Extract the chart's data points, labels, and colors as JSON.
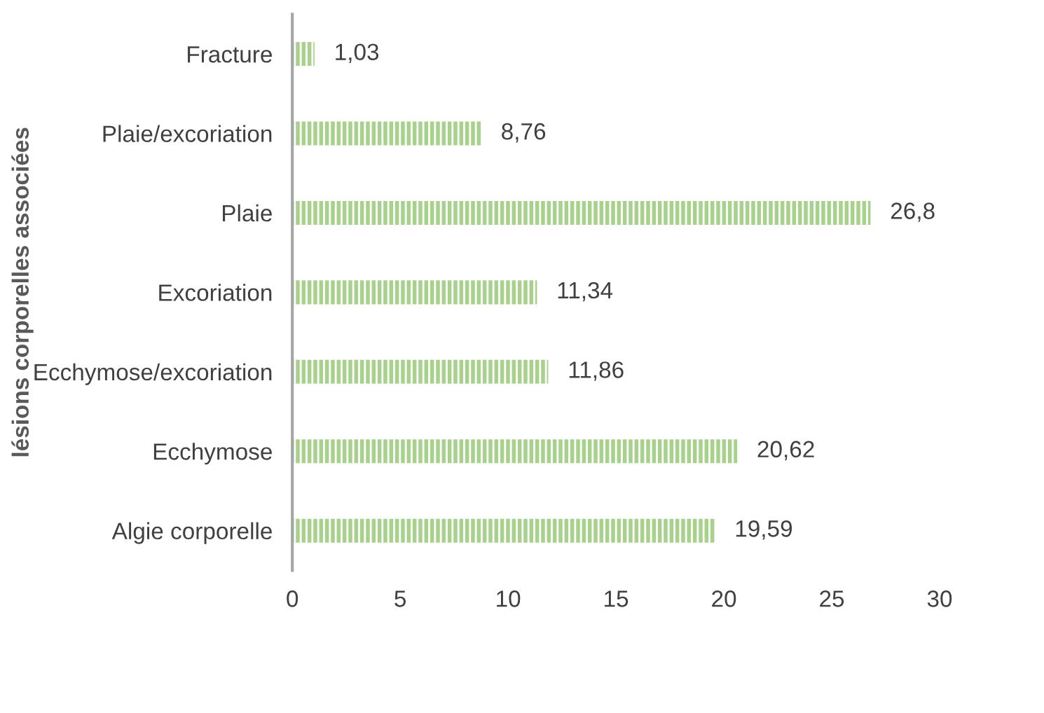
{
  "chart_data": {
    "type": "bar",
    "orientation": "horizontal",
    "ylabel": "lésions corporelles associées",
    "categories": [
      "Fracture",
      "Plaie/excoriation",
      "Plaie",
      "Excoriation",
      "Ecchymose/excoriation",
      "Ecchymose",
      "Algie corporelle"
    ],
    "values": [
      1.03,
      8.76,
      26.8,
      11.34,
      11.86,
      20.62,
      19.59
    ],
    "value_labels": [
      "1,03",
      "8,76",
      "26,8",
      "11,34",
      "11,86",
      "20,62",
      "19,59"
    ],
    "color": "#a9d18e",
    "xlim": [
      0,
      30
    ],
    "xticks": [
      0,
      5,
      10,
      15,
      20,
      25,
      30
    ],
    "grid": false,
    "legend": false
  }
}
